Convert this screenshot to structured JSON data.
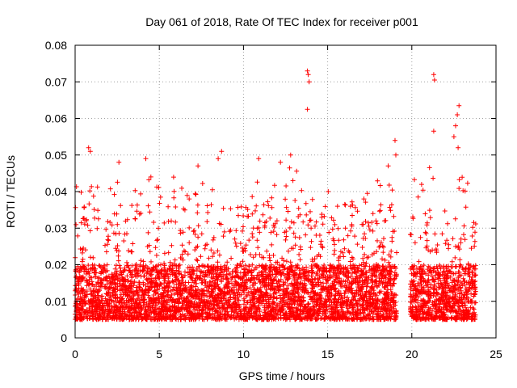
{
  "chart_data": {
    "type": "scatter",
    "title": "Day 061 of 2018, Rate Of TEC Index for receiver p001",
    "xlabel": "GPS time / hours",
    "ylabel": "ROTI / TECUs",
    "xlim": [
      0,
      25
    ],
    "ylim": [
      0,
      0.08
    ],
    "x_ticks": [
      0,
      5,
      10,
      15,
      20,
      25
    ],
    "y_ticks": [
      0,
      0.01,
      0.02,
      0.03,
      0.04,
      0.05,
      0.06,
      0.07,
      0.08
    ],
    "x_tick_labels": [
      "0",
      "5",
      "10",
      "15",
      "20",
      "25"
    ],
    "y_tick_labels": [
      "0",
      "0.01",
      "0.02",
      "0.03",
      "0.04",
      "0.05",
      "0.06",
      "0.07",
      "0.08"
    ],
    "grid": true,
    "marker": "+",
    "color": "#ff0000",
    "series": [
      {
        "name": "ROTI",
        "x_range": [
          0.0,
          23.8
        ],
        "gaps": [
          [
            19.1,
            19.9
          ]
        ],
        "baseline_range": [
          0.005,
          0.02
        ],
        "outliers": [
          {
            "x": 0.8,
            "y": 0.052
          },
          {
            "x": 0.9,
            "y": 0.051
          },
          {
            "x": 2.6,
            "y": 0.048
          },
          {
            "x": 4.2,
            "y": 0.049
          },
          {
            "x": 4.5,
            "y": 0.044
          },
          {
            "x": 7.3,
            "y": 0.047
          },
          {
            "x": 8.5,
            "y": 0.049
          },
          {
            "x": 8.7,
            "y": 0.051
          },
          {
            "x": 10.9,
            "y": 0.049
          },
          {
            "x": 12.2,
            "y": 0.048
          },
          {
            "x": 12.8,
            "y": 0.05
          },
          {
            "x": 13.8,
            "y": 0.073
          },
          {
            "x": 13.85,
            "y": 0.072
          },
          {
            "x": 13.9,
            "y": 0.07
          },
          {
            "x": 13.8,
            "y": 0.0625
          },
          {
            "x": 18.6,
            "y": 0.047
          },
          {
            "x": 19.0,
            "y": 0.054
          },
          {
            "x": 19.05,
            "y": 0.05
          },
          {
            "x": 21.3,
            "y": 0.072
          },
          {
            "x": 21.35,
            "y": 0.0705
          },
          {
            "x": 21.3,
            "y": 0.0565
          },
          {
            "x": 22.6,
            "y": 0.058
          },
          {
            "x": 22.7,
            "y": 0.061
          },
          {
            "x": 22.8,
            "y": 0.0635
          },
          {
            "x": 22.5,
            "y": 0.055
          },
          {
            "x": 22.75,
            "y": 0.052
          }
        ]
      }
    ]
  }
}
